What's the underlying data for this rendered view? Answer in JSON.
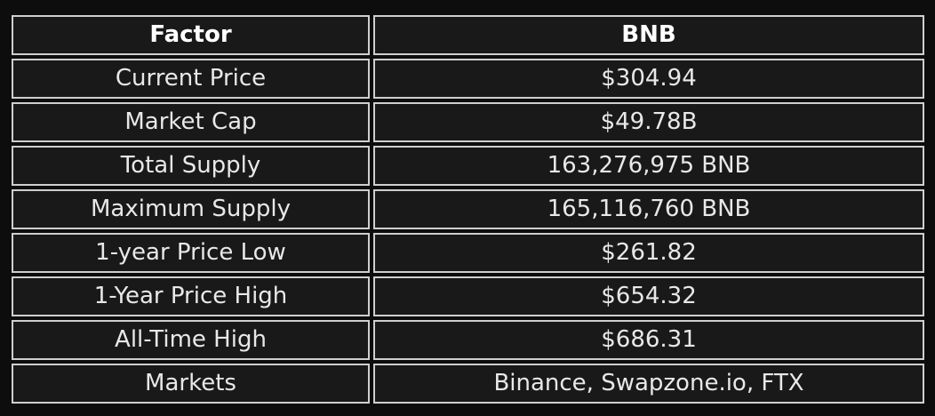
{
  "table": {
    "headers": [
      "Factor",
      "BNB"
    ],
    "rows": [
      [
        "Current Price",
        "$304.94"
      ],
      [
        "Market Cap",
        "$49.78B"
      ],
      [
        "Total Supply",
        "163,276,975 BNB"
      ],
      [
        "Maximum Supply",
        "165,116,760 BNB"
      ],
      [
        "1-year Price Low",
        "$261.82"
      ],
      [
        "1-Year Price High",
        "$654.32"
      ],
      [
        "All-Time High",
        "$686.31"
      ],
      [
        "Markets",
        "Binance, Swapzone.io, FTX"
      ]
    ]
  },
  "colors": {
    "background": "#0d0d0d",
    "cell_background": "#191919",
    "border": "#cfcfcf",
    "text": "#e8e8e8"
  }
}
